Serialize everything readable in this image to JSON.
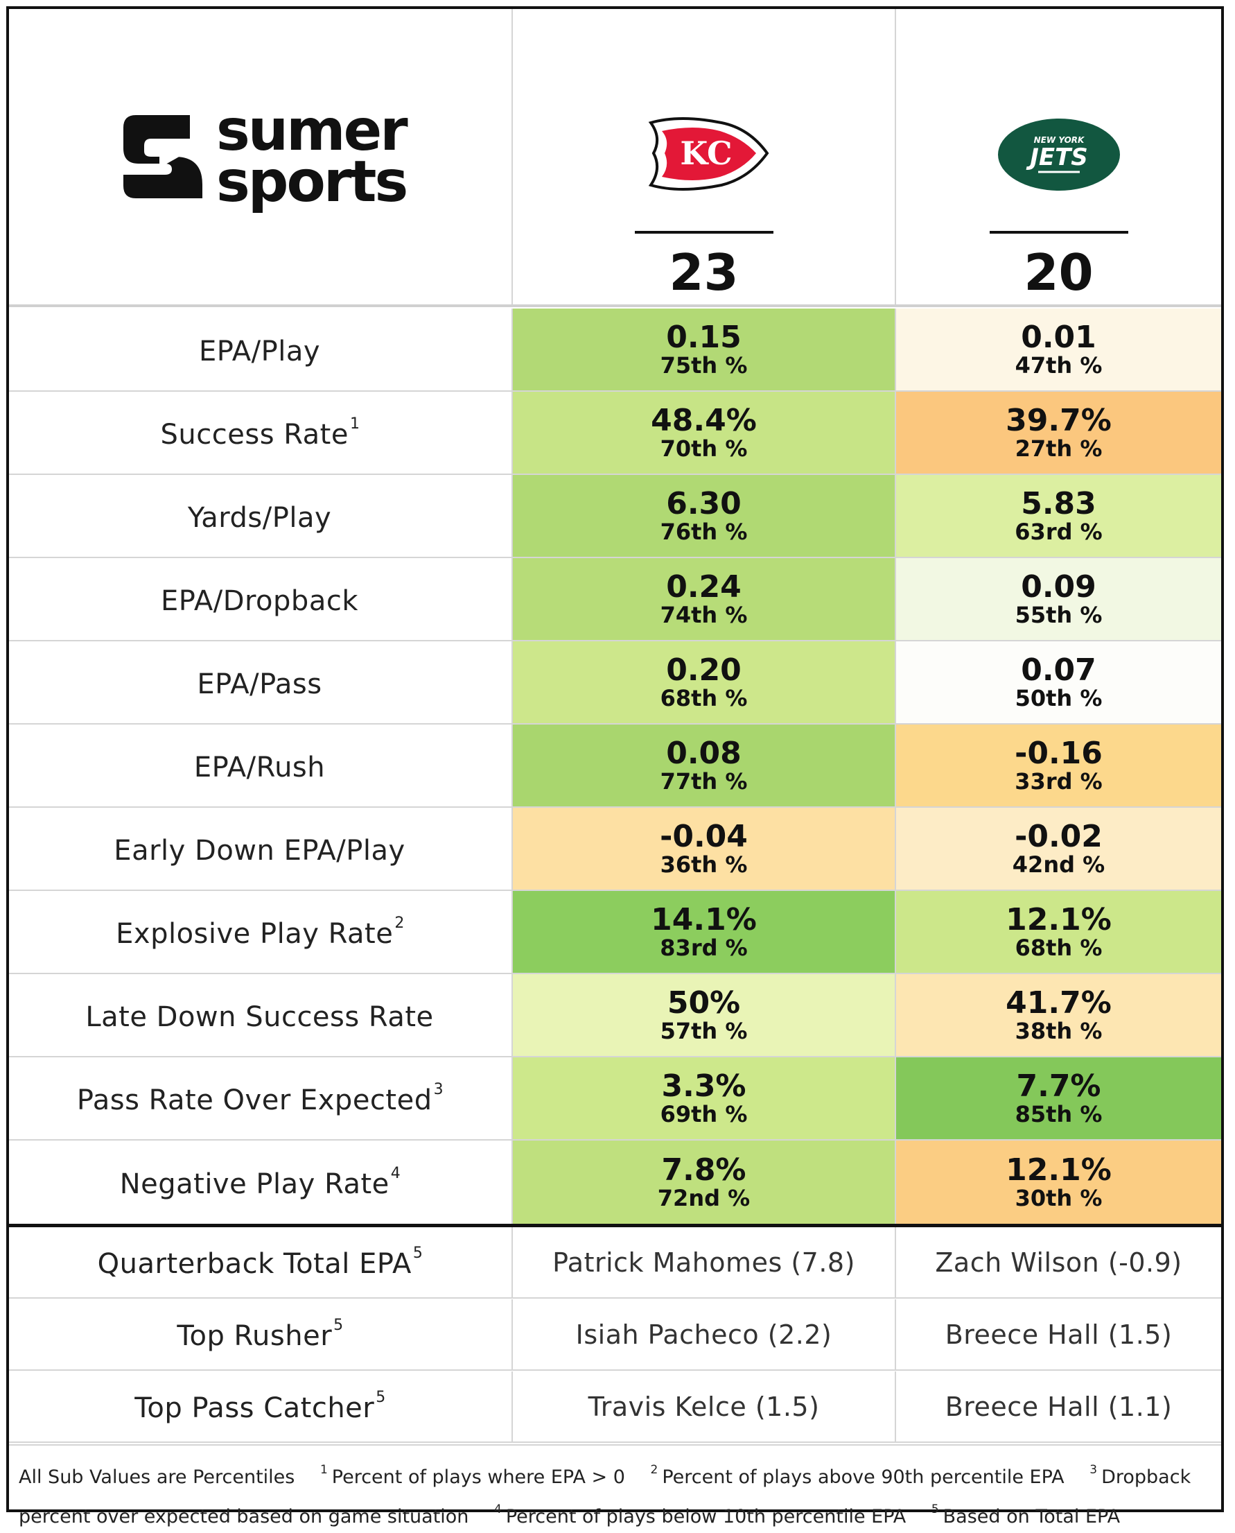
{
  "brand": {
    "line1": "sumer",
    "line2": "sports"
  },
  "teams": [
    {
      "name": "Kansas City Chiefs",
      "logo_text": "KC",
      "score": "23",
      "color": "#e31837"
    },
    {
      "name": "New York Jets",
      "logo_text_top": "NEW YORK",
      "logo_text": "JETS",
      "score": "20",
      "color": "#125740"
    }
  ],
  "metrics": [
    {
      "label": "EPA/Play",
      "sup": "",
      "home": {
        "value": "0.15",
        "pct": "75th %",
        "color": "#b2d975"
      },
      "away": {
        "value": "0.01",
        "pct": "47th %",
        "color": "#fdf6e5"
      }
    },
    {
      "label": "Success Rate",
      "sup": "1",
      "home": {
        "value": "48.4%",
        "pct": "70th %",
        "color": "#c7e486"
      },
      "away": {
        "value": "39.7%",
        "pct": "27th %",
        "color": "#fbc77e"
      }
    },
    {
      "label": "Yards/Play",
      "sup": "",
      "home": {
        "value": "6.30",
        "pct": "76th %",
        "color": "#b0d973"
      },
      "away": {
        "value": "5.83",
        "pct": "63rd %",
        "color": "#dcefa1"
      }
    },
    {
      "label": "EPA/Dropback",
      "sup": "",
      "home": {
        "value": "0.24",
        "pct": "74th %",
        "color": "#b7dc78"
      },
      "away": {
        "value": "0.09",
        "pct": "55th %",
        "color": "#f2f8e3"
      }
    },
    {
      "label": "EPA/Pass",
      "sup": "",
      "home": {
        "value": "0.20",
        "pct": "68th %",
        "color": "#cde78b"
      },
      "away": {
        "value": "0.07",
        "pct": "50th %",
        "color": "#fdfdfa"
      }
    },
    {
      "label": "EPA/Rush",
      "sup": "",
      "home": {
        "value": "0.08",
        "pct": "77th %",
        "color": "#a9d66e"
      },
      "away": {
        "value": "-0.16",
        "pct": "33rd %",
        "color": "#fcd88c"
      }
    },
    {
      "label": "Early Down EPA/Play",
      "sup": "",
      "home": {
        "value": "-0.04",
        "pct": "36th %",
        "color": "#fde0a3"
      },
      "away": {
        "value": "-0.02",
        "pct": "42nd %",
        "color": "#fdecc6"
      }
    },
    {
      "label": "Explosive Play Rate",
      "sup": "2",
      "home": {
        "value": "14.1%",
        "pct": "83rd %",
        "color": "#8ccd5e"
      },
      "away": {
        "value": "12.1%",
        "pct": "68th %",
        "color": "#cce78a"
      }
    },
    {
      "label": "Late Down Success Rate",
      "sup": "",
      "home": {
        "value": "50%",
        "pct": "57th %",
        "color": "#e9f4b6"
      },
      "away": {
        "value": "41.7%",
        "pct": "38th %",
        "color": "#fde6b2"
      }
    },
    {
      "label": "Pass Rate Over Expected",
      "sup": "3",
      "home": {
        "value": "3.3%",
        "pct": "69th %",
        "color": "#cde88b"
      },
      "away": {
        "value": "7.7%",
        "pct": "85th %",
        "color": "#84c85a"
      }
    },
    {
      "label": "Negative Play Rate",
      "sup": "4",
      "home": {
        "value": "7.8%",
        "pct": "72nd %",
        "color": "#bfe07e"
      },
      "away": {
        "value": "12.1%",
        "pct": "30th %",
        "color": "#fbcd83"
      }
    }
  ],
  "players": [
    {
      "label": "Quarterback Total EPA",
      "sup": "5",
      "home": "Patrick Mahomes (7.8)",
      "away": "Zach Wilson (-0.9)"
    },
    {
      "label": "Top Rusher",
      "sup": "5",
      "home": "Isiah Pacheco (2.2)",
      "away": "Breece Hall (1.5)"
    },
    {
      "label": "Top Pass Catcher",
      "sup": "5",
      "home": "Travis Kelce (1.5)",
      "away": "Breece Hall (1.1)"
    }
  ],
  "footer": {
    "sub_values": "All Sub Values are Percentiles",
    "notes": [
      {
        "num": "1",
        "text": "Percent of plays where EPA > 0"
      },
      {
        "num": "2",
        "text": "Percent of plays above 90th percentile EPA"
      },
      {
        "num": "3",
        "text": "Dropback percent over expected based on game situation"
      },
      {
        "num": "4",
        "text": "Percent of plays below 10th percentile EPA"
      },
      {
        "num": "5",
        "text": "Based on Total EPA"
      }
    ]
  }
}
